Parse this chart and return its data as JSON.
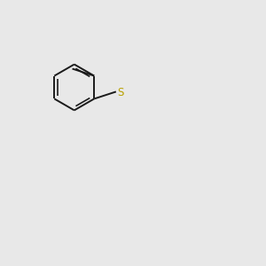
{
  "bg_color": "#e8e8e8",
  "bond_color": "#1a1a1a",
  "atom_colors": {
    "O": "#ff0000",
    "S": "#b8a000",
    "N": "#0000ff",
    "H": "#2a9090",
    "O_furan": "#ff0000",
    "O_methoxy": "#ff0000"
  },
  "bond_width": 1.4,
  "font_size_atoms": 8.5,
  "figsize": [
    3.0,
    3.0
  ],
  "dpi": 100
}
